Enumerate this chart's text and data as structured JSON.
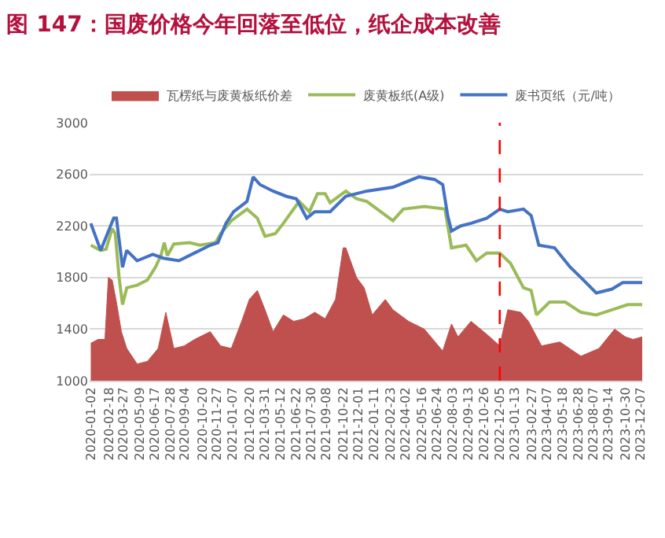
{
  "chart_data": {
    "type": "line",
    "title": "图 147：国废价格今年回落至低位，纸企成本改善",
    "series": [
      {
        "name": "瓦楞纸与废黄板纸价差",
        "type": "area",
        "color": "#c0504d",
        "x": [
          "2020-01-02",
          "2020-01-21",
          "2020-02-08",
          "2020-02-17",
          "2020-02-27",
          "2020-03-09",
          "2020-03-22",
          "2020-04-05",
          "2020-05-02",
          "2020-05-29",
          "2020-06-26",
          "2020-07-16",
          "2020-08-06",
          "2020-09-02",
          "2020-09-29",
          "2020-11-09",
          "2020-12-06",
          "2021-01-03",
          "2021-01-30",
          "2021-02-19",
          "2021-03-12",
          "2021-04-01",
          "2021-04-22",
          "2021-05-19",
          "2021-06-15",
          "2021-07-12",
          "2021-08-09",
          "2021-09-05",
          "2021-10-02",
          "2021-10-22",
          "2021-10-29",
          "2021-11-26",
          "2021-12-16",
          "2022-01-06",
          "2022-02-09",
          "2022-03-01",
          "2022-04-11",
          "2022-05-22",
          "2022-07-09",
          "2022-08-01",
          "2022-08-18",
          "2022-09-21",
          "2022-11-01",
          "2022-12-05",
          "2022-12-26",
          "2023-01-29",
          "2023-02-18",
          "2023-03-24",
          "2023-05-11",
          "2023-07-05",
          "2023-08-21",
          "2023-10-01",
          "2023-10-29",
          "2023-11-18",
          "2023-12-12"
        ],
        "values": [
          1290,
          1320,
          1320,
          1800,
          1780,
          1610,
          1380,
          1250,
          1130,
          1150,
          1250,
          1530,
          1250,
          1270,
          1320,
          1380,
          1270,
          1250,
          1460,
          1630,
          1700,
          1550,
          1380,
          1510,
          1460,
          1480,
          1530,
          1480,
          1630,
          2030,
          2030,
          1800,
          1720,
          1510,
          1630,
          1550,
          1460,
          1400,
          1230,
          1440,
          1340,
          1460,
          1360,
          1270,
          1550,
          1530,
          1460,
          1270,
          1300,
          1190,
          1250,
          1400,
          1340,
          1320,
          1340
        ]
      },
      {
        "name": "废黄板纸(A级)",
        "color": "#9bbb59",
        "x": [
          "2020-01-02",
          "2020-01-28",
          "2020-02-11",
          "2020-02-27",
          "2020-03-06",
          "2020-03-16",
          "2020-03-25",
          "2020-04-05",
          "2020-05-02",
          "2020-05-29",
          "2020-06-19",
          "2020-07-03",
          "2020-07-12",
          "2020-07-20",
          "2020-08-06",
          "2020-09-16",
          "2020-10-13",
          "2020-11-23",
          "2020-12-06",
          "2021-01-03",
          "2021-02-13",
          "2021-03-12",
          "2021-04-01",
          "2021-04-28",
          "2021-05-19",
          "2021-06-29",
          "2021-07-26",
          "2021-08-16",
          "2021-09-05",
          "2021-09-18",
          "2021-10-29",
          "2021-11-26",
          "2021-12-23",
          "2022-01-19",
          "2022-03-01",
          "2022-03-28",
          "2022-05-22",
          "2022-07-15",
          "2022-08-01",
          "2022-09-08",
          "2022-10-05",
          "2022-11-01",
          "2022-12-05",
          "2023-01-02",
          "2023-02-05",
          "2023-02-25",
          "2023-03-11",
          "2023-04-14",
          "2023-05-25",
          "2023-07-05",
          "2023-08-14",
          "2023-09-24",
          "2023-11-04",
          "2023-12-12"
        ],
        "values": [
          2050,
          2010,
          2020,
          2180,
          2140,
          1800,
          1590,
          1720,
          1740,
          1780,
          1880,
          1970,
          2070,
          1970,
          2060,
          2070,
          2050,
          2070,
          2140,
          2240,
          2330,
          2260,
          2120,
          2140,
          2220,
          2390,
          2310,
          2450,
          2450,
          2380,
          2470,
          2410,
          2390,
          2330,
          2240,
          2330,
          2350,
          2330,
          2030,
          2050,
          1930,
          1990,
          1990,
          1910,
          1720,
          1700,
          1510,
          1610,
          1610,
          1530,
          1510,
          1550,
          1590,
          1590
        ]
      },
      {
        "name": "废书页纸（元/吨）",
        "color": "#4472c4",
        "x": [
          "2020-01-02",
          "2020-01-28",
          "2020-03-02",
          "2020-03-09",
          "2020-03-25",
          "2020-04-05",
          "2020-05-02",
          "2020-06-12",
          "2020-07-09",
          "2020-08-19",
          "2020-09-29",
          "2020-11-09",
          "2020-11-29",
          "2020-12-20",
          "2021-01-09",
          "2021-02-13",
          "2021-03-01",
          "2021-03-19",
          "2021-04-22",
          "2021-05-26",
          "2021-06-22",
          "2021-07-19",
          "2021-08-09",
          "2021-09-18",
          "2021-10-29",
          "2021-12-23",
          "2022-03-01",
          "2022-05-08",
          "2022-06-18",
          "2022-07-09",
          "2022-07-22",
          "2022-08-01",
          "2022-08-25",
          "2022-09-21",
          "2022-11-01",
          "2022-12-05",
          "2022-12-26",
          "2023-02-05",
          "2023-02-25",
          "2023-03-17",
          "2023-04-27",
          "2023-06-07",
          "2023-07-05",
          "2023-08-14",
          "2023-09-24",
          "2023-10-22",
          "2023-12-12"
        ],
        "values": [
          2220,
          2010,
          2260,
          2260,
          1880,
          2010,
          1930,
          1980,
          1950,
          1930,
          1990,
          2050,
          2070,
          2220,
          2310,
          2390,
          2580,
          2520,
          2470,
          2430,
          2410,
          2260,
          2310,
          2310,
          2430,
          2470,
          2500,
          2580,
          2560,
          2520,
          2280,
          2160,
          2200,
          2220,
          2260,
          2330,
          2310,
          2330,
          2280,
          2050,
          2030,
          1880,
          1800,
          1680,
          1710,
          1760,
          1760
        ]
      }
    ],
    "xlim": [
      "2019-12-30",
      "2023-12-14"
    ],
    "xticks": [
      "2020-01-02",
      "2020-02-18",
      "2020-03-27",
      "2020-05-09",
      "2020-06-17",
      "2020-07-28",
      "2020-09-04",
      "2020-10-20",
      "2020-11-27",
      "2021-01-07",
      "2021-02-20",
      "2021-03-31",
      "2021-05-12",
      "2021-06-22",
      "2021-07-30",
      "2021-09-08",
      "2021-10-22",
      "2021-12-01",
      "2022-01-11",
      "2022-02-23",
      "2022-04-02",
      "2022-05-16",
      "2022-06-24",
      "2022-08-03",
      "2022-09-13",
      "2022-10-26",
      "2022-12-05",
      "2023-01-13",
      "2023-02-27",
      "2023-04-07",
      "2023-05-18",
      "2023-06-28",
      "2023-08-07",
      "2023-09-14",
      "2023-10-30",
      "2023-12-07"
    ],
    "ylim": [
      1000,
      3000
    ],
    "yticks": [
      1000,
      1400,
      1800,
      2200,
      2600,
      3000
    ],
    "ref_lines": [
      {
        "axis": "x",
        "value": "2022-12-05",
        "color": "#ff0000",
        "line_style": "dashed"
      }
    ],
    "grid": "y",
    "legend": "top",
    "marker": "none",
    "line_style": "solid"
  }
}
